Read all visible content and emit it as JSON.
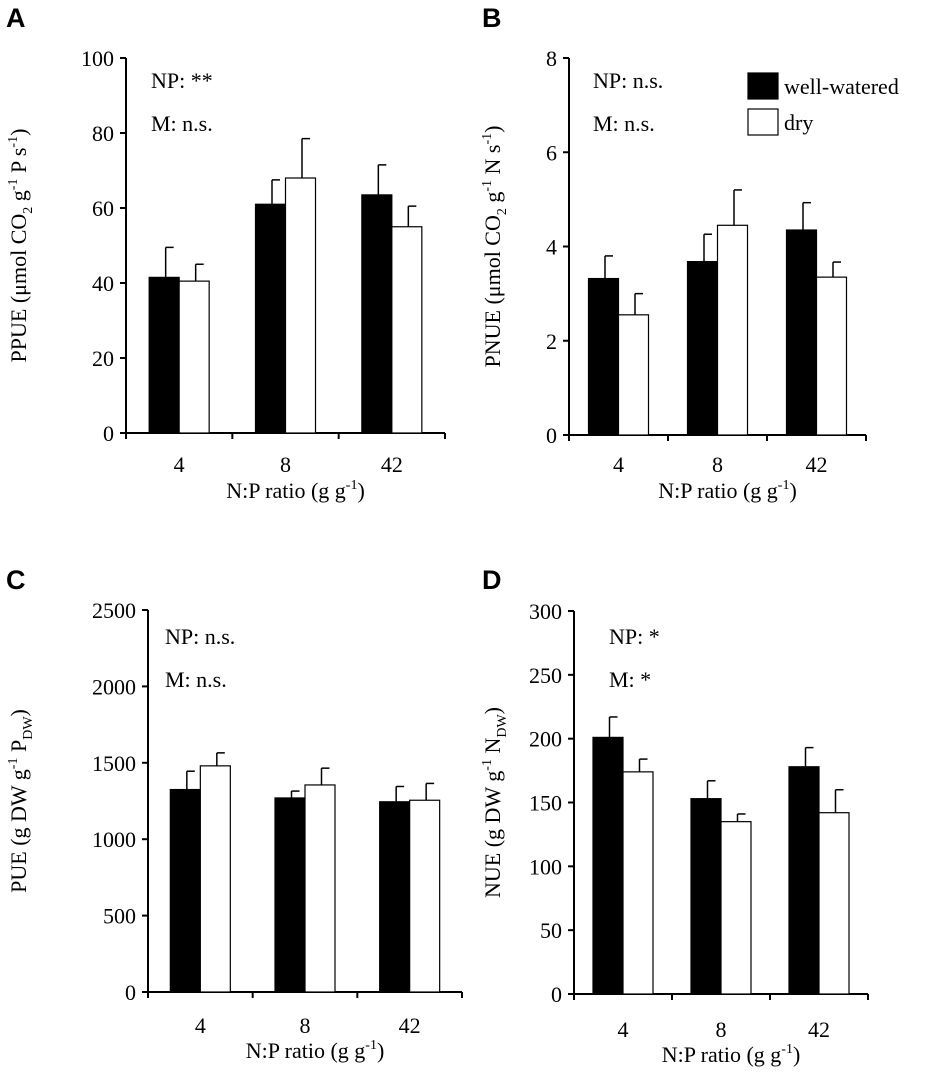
{
  "legend": {
    "entries": [
      {
        "label": "well-watered",
        "color": "#000000"
      },
      {
        "label": "dry",
        "color": "#ffffff"
      }
    ]
  },
  "colors": {
    "well_watered": "#000000",
    "dry": "#ffffff",
    "axis": "#000000"
  },
  "chart_data": [
    {
      "panel": "A",
      "type": "bar",
      "title": "",
      "categories": [
        "4",
        "8",
        "42"
      ],
      "series": [
        {
          "name": "well-watered",
          "values": [
            41.5,
            61,
            63.5
          ],
          "errors": [
            8,
            6.5,
            8
          ]
        },
        {
          "name": "dry",
          "values": [
            40.5,
            68,
            55
          ],
          "errors": [
            4.5,
            10.5,
            5.5
          ]
        }
      ],
      "ylim": [
        0,
        100
      ],
      "yticks": [
        0,
        20,
        40,
        60,
        80,
        100
      ],
      "ylabel": {
        "main": "PPUE (μmol CO",
        "sub1": "2",
        "mid": " g",
        "sup1": "-1",
        "tail": " P s",
        "sup2": "-1",
        "end": ")"
      },
      "xlabel": {
        "main": "N:P ratio (g g",
        "sup": "-1",
        "end": ")"
      },
      "annotations": [
        "NP: **",
        "M: n.s."
      ],
      "legend": false
    },
    {
      "panel": "B",
      "type": "bar",
      "title": "",
      "categories": [
        "4",
        "8",
        "42"
      ],
      "series": [
        {
          "name": "well-watered",
          "values": [
            3.32,
            3.68,
            4.35
          ],
          "errors": [
            0.48,
            0.58,
            0.58
          ]
        },
        {
          "name": "dry",
          "values": [
            2.55,
            4.45,
            3.35
          ],
          "errors": [
            0.45,
            0.75,
            0.32
          ]
        }
      ],
      "ylim": [
        0,
        8
      ],
      "yticks": [
        0,
        2,
        4,
        6,
        8
      ],
      "ylabel": {
        "main": "PNUE (μmol CO",
        "sub1": "2",
        "mid": " g",
        "sup1": "-1",
        "tail": " N s",
        "sup2": "-1",
        "end": ")"
      },
      "xlabel": {
        "main": "N:P ratio (g  g",
        "sup": "-1",
        "end": ")"
      },
      "annotations": [
        "NP: n.s.",
        "M: n.s."
      ],
      "legend": true
    },
    {
      "panel": "C",
      "type": "bar",
      "title": "",
      "categories": [
        "4",
        "8",
        "42"
      ],
      "series": [
        {
          "name": "well-watered",
          "values": [
            1325,
            1270,
            1245
          ],
          "errors": [
            120,
            45,
            100
          ]
        },
        {
          "name": "dry",
          "values": [
            1480,
            1355,
            1255
          ],
          "errors": [
            85,
            110,
            110
          ]
        }
      ],
      "ylim": [
        0,
        2500
      ],
      "yticks": [
        0,
        500,
        1000,
        1500,
        2000,
        2500
      ],
      "ylabel": {
        "main": "PUE (g DW  g",
        "sup1": "-1",
        "mid": " P",
        "sub1": "DW",
        "end": ")"
      },
      "xlabel": {
        "main": "N:P ratio (g  g",
        "sup": "-1",
        "end": ")"
      },
      "annotations": [
        "NP: n.s.",
        "M: n.s."
      ],
      "legend": false
    },
    {
      "panel": "D",
      "type": "bar",
      "title": "",
      "categories": [
        "4",
        "8",
        "42"
      ],
      "series": [
        {
          "name": "well-watered",
          "values": [
            201,
            153,
            178
          ],
          "errors": [
            16,
            14,
            15
          ]
        },
        {
          "name": "dry",
          "values": [
            174,
            135,
            142
          ],
          "errors": [
            10,
            6,
            18
          ]
        }
      ],
      "ylim": [
        0,
        300
      ],
      "yticks": [
        0,
        50,
        100,
        150,
        200,
        250,
        300
      ],
      "ylabel": {
        "main": "NUE (g DW g",
        "sup1": "-1",
        "mid": " N",
        "sub1": "DW",
        "end": ")"
      },
      "xlabel": {
        "main": "N:P ratio (g  g",
        "sup": "-1",
        "end": ")"
      },
      "annotations": [
        "NP: *",
        "M: *"
      ],
      "legend": false
    }
  ]
}
